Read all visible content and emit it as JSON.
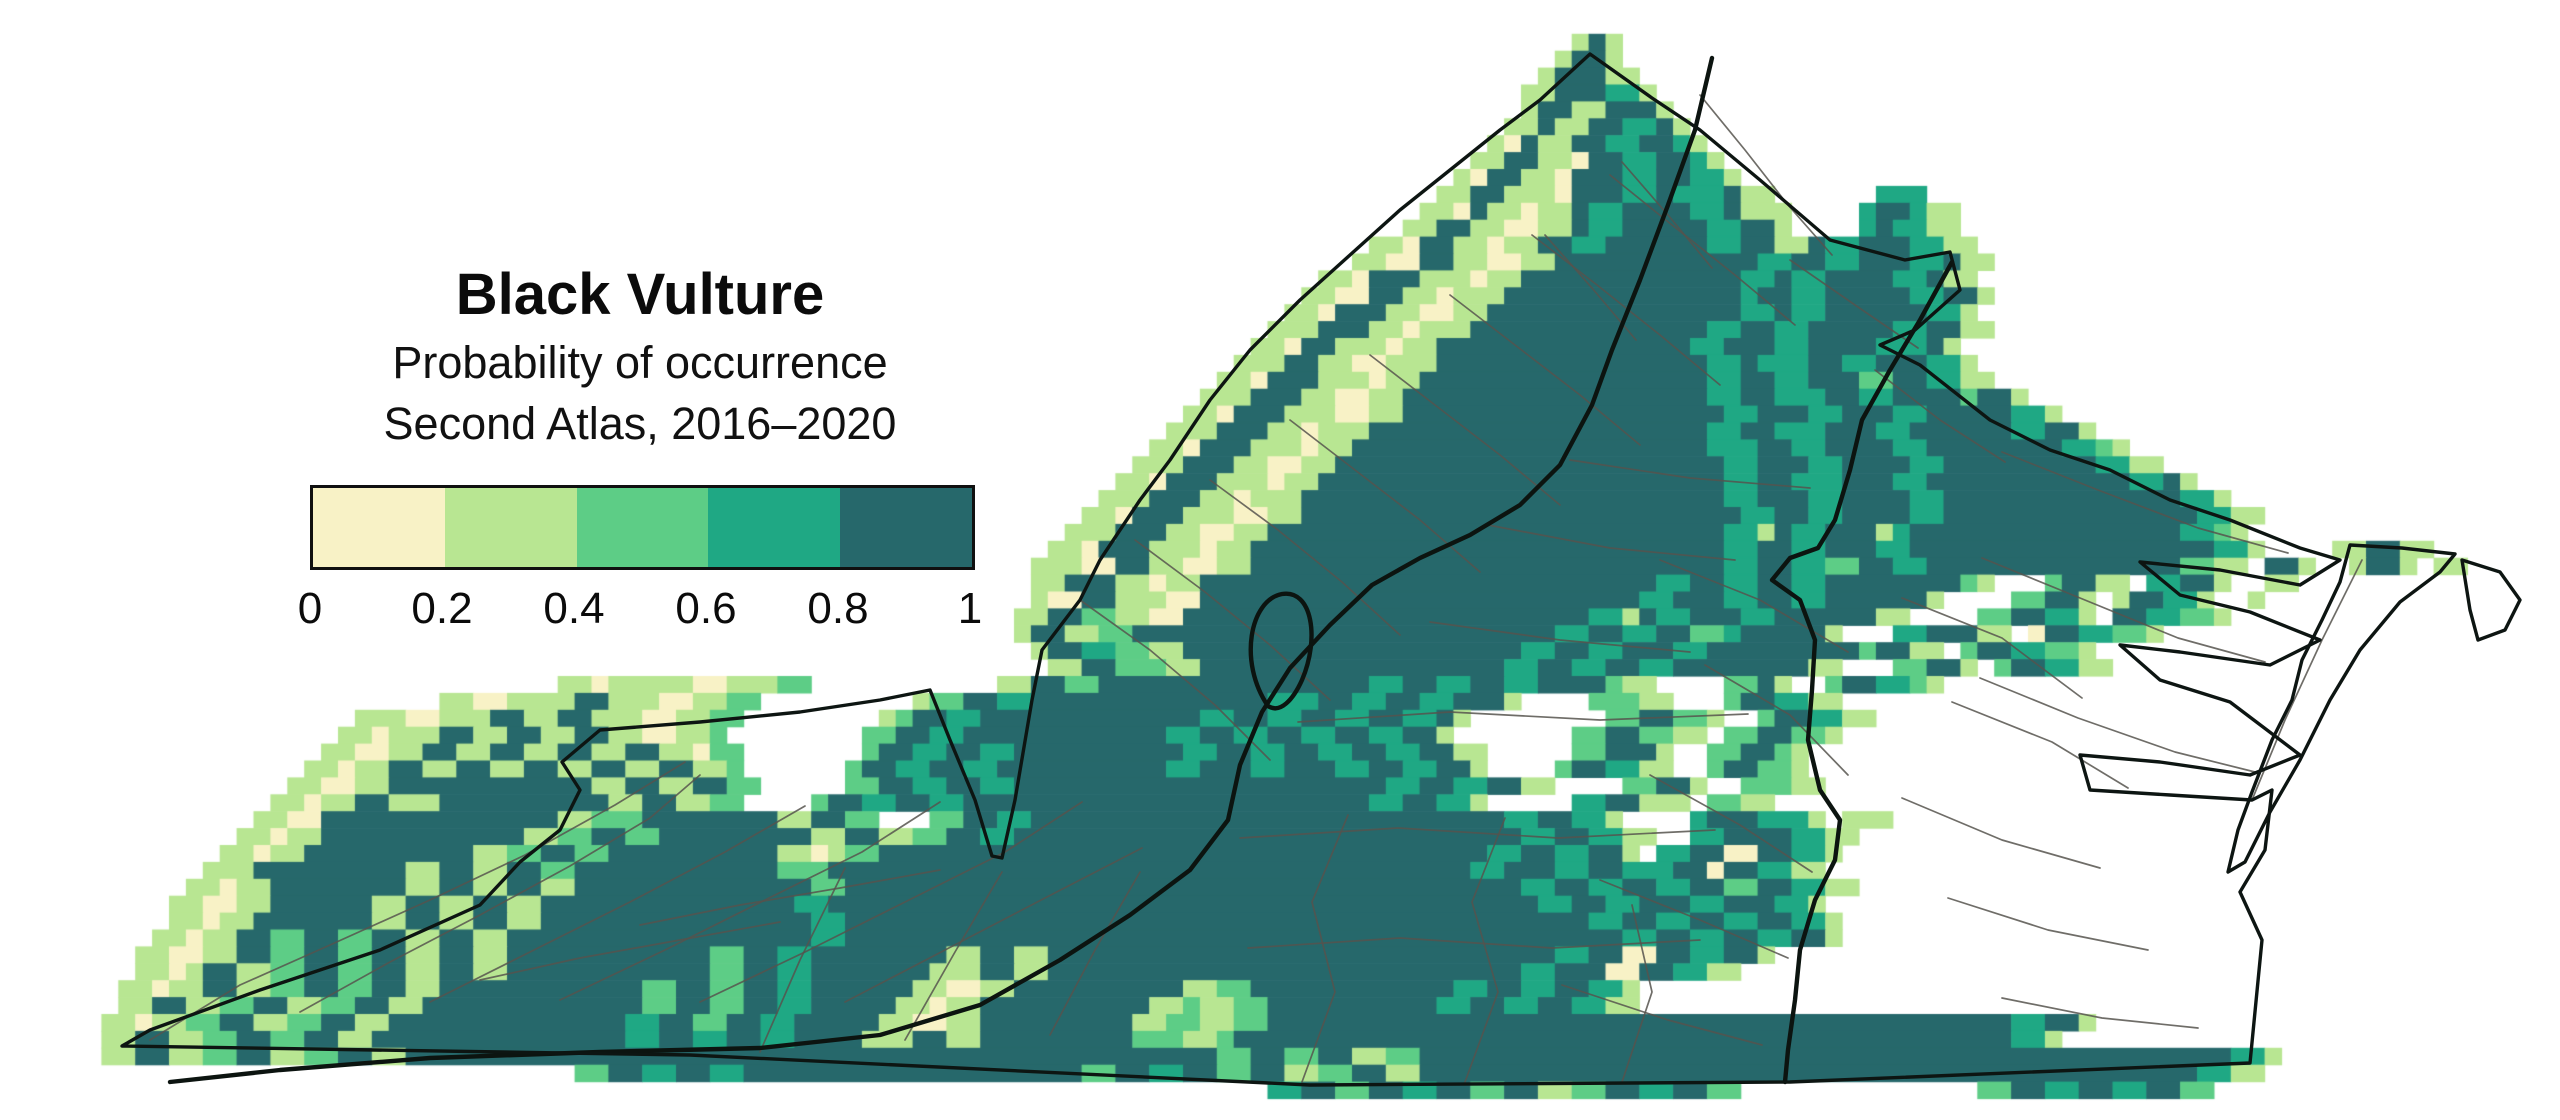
{
  "legend": {
    "heading": "Black Vulture",
    "subheading": "Probability of occurrence",
    "edition": "Second Atlas, 2016–2020",
    "ticks": [
      "0",
      "0.2",
      "0.4",
      "0.6",
      "0.8",
      "1"
    ],
    "classes": [
      {
        "range": "0–0.2",
        "color": "#F8F2C6"
      },
      {
        "range": "0.2–0.4",
        "color": "#B8E692"
      },
      {
        "range": "0.4–0.6",
        "color": "#5DCD86"
      },
      {
        "range": "0.6–0.8",
        "color": "#1FA884"
      },
      {
        "range": "0.8–1",
        "color": "#26686B"
      }
    ]
  },
  "map": {
    "background": "#ffffff",
    "county_line_color": "#56534e",
    "boundary_line_color": "#0d1512",
    "cell_size": 16.9,
    "palette": {
      "A": "#F8F2C6",
      "B": "#B8E692",
      "C": "#5DCD86",
      "D": "#1FA884",
      "E": "#26686B"
    },
    "rows": [
      "",
      "",
      "93.BEB",
      "92.B2EB",
      "91.B3E2B",
      "90.2B3E2DB",
      "90.B2E2B3EB",
      "89.2BE2B2E2DEB",
      "88.BAE2B2E2D2EDB",
      "87.2B2E2BA2E2D2EDB",
      "86.BA2E2BA3E2D2E2DB",
      "85.2B2E3BA3E2DE3DE2B6.3D",
      "84.2BAE2BA2BE2D4E2DE3B4.D2ED2B",
      "83.2B2E2B2A2BE2D5E2D2EB4.DE2D2B",
      "81.2BA2E2BA2B2E2D6E2D2E2BE2D3E2D2B",
      "80.2B2A2E2B2A2B12E2D2E2D3E2DE2B",
      "78.2BA3E3BA2B13E2DE2D4E2DE2B",
      "77.2B2A2E2BA3B14ED2E2D5E2D2EB",
      "76.2BA3E2B2A2B15E2DE2D6E2DB",
      "75.3B3E2BA3B14E2D2E2D5E2D2E2B",
      "74.2BA2E3BA2B15E2D3E2D4E3DEB",
      "73.3B2E2B2A3B16E2DE3D2E2D3E2DB",
      "72.2BA3E3BA2B17E2D2E2D3E2C2E2D2B",
      "71.3B3E2B2A2B18E2D2E3D2E2D4EC2EB",
      "70.2BA3E3B2A2B19E2D3E2D3E2D5E2DB",
      "69.3B3E2BA3B20E2D2E3D3E2D6E2D2EB",
      "68.2BA3E3BA2B21E3D2E2D4E2D8E2DCB",
      "67.3B3E2B2A2B23E2D3E2D4E2D9E2D2B",
      "66.2BA3E3BA2B24E2D2E3D3E2D12E2DEB",
      "65.3B3E2BA3B25E2D3E2D4E2D14E2DB",
      "64.2BA3E3B2A2B26E2D2E2D4E2D15E2D2B",
      "63.3B3E2B2A2B27E2DBE2D3EBD16E2DCB",
      "62.2BA3E3BA2B28E2D2E2D3E2D18E2DB4.2B2E2B",
      "61.3B2A2E2B2A2B28E2D2E2D2C2E2D15E2C2B.2EB2.B2EB.2B",
      "61.2B3E2BA2B27E2D2E2D2E2D8ECB3.C2E2B.2D2EB2.2B",
      "61.B2A2E3B2A26E2D3E2D2E2D6EB4.2C2EB.B2E2DB2.B",
      "60.2B2E2C2B2A24E2DBE2D3E2D6E2B4.2C2E2DB.2E2D2CB",
      "60.B2E2B2C25E2D2E2D2E2CD5EB3.2D3E2B.A2E2D2CB",
      "61.B2E2D2C2B20E2D2E2D3E2D9EC2E2B.C2E2D2CB",
      "62.2B2E3C2B18E2D2E2D2E2D8E2B3.2C2EB.C2E2D2B",
      "33.2BA5B2A3B2C11.2B2E2C16E2D2E2D2E2D4EC2B4.2CEB2.C2E2DCB",
      "26.2B2A4B2E3B2A2B2C9.B2C2E2D14E3D2E2D2E2D3EB4.3C2B3.C2E2D2B",
      "21.3B2A3B2E2B2E3B2A2B2C8.BC2E2D13E2D2E2D2E2D2E2DEB8.2C2E2CB2.C2E2D2B",
      "20.2BA3B2E2B2E2B2E2B2A2BC8.2C2E2D12E2D2E2D2E2D2E2D2EB7.2C2E2C2B.2C2E2CB",
      "19.2B2A2B2E2B2E2B2E2B2E2BA2C7.C2E2D2E2D10E2D2E2D2E2D2E2D2E2B5.2C3EB2.2C2ECB",
      "18.2BA2B2E2B2E2B2E2B2E2B2E2BC6.C2E2D2E2D10E2D3E2D3E2D2E2D2EB4.C2E2D2B2.C2E2CB",
      "17.2B2A2B12E2B2E2B2E2C5.2C2E2D2E2D22E2D2E2D2E2B4.2C2EB2.3C2B",
      "16.2BA2B2E3B10E2B2E2B2C4.C2E2D2E2D24E2D2E2DB5.2D2E3B.2C2B",
      "15.2B2A14E2B3C8E2B2E2C3.2C2E2D28E2D2E2DB4.D3E3DB.3B",
      "14.2BA2B12E2B2C2E2C9E2B2E2B2C2E2D30E2D2E2D2B2.2D4E2D2B",
      "13.2BA2B10E2B2C2E2C10E2BAB2C36E2D2E2D2EB.2D2E2A2E2DB",
      "12.3B9E2B2E2B2E2C12E3C38E2D3E2D2E3D2EA2E2D2B",
      "11.2BA2B8E2B2E2B2E2B14E2C40E2D2E2D2E2D2E2C2E2D2B",
      "10.2B2A2B6E2B2E2B2E2B15E2D42E2D2E2D3E2D3E2DB",
      "10.2BA2B7E2B2E2B2E2B16E2D44E2D2E2D2E2D2E2DB",
      "9.2BA2B2E2C2E2C2E2B2E2B18E2D46E2D2E2D2E2D2EB",
      "8.2B2A2B2E2C2E2C2E2B2E2B12E2C2E2D8E2B2E2B30E2D2E2A2E2D2EB",
      "8.2BAB2E2B2C2E2C2E2B2E2B12E2C2E2D7E3B2E2B28E2D3E2A2E2D2B",
      "7.2BA2B2E2B2C2E2C2E2B12E2C2E2C2E2D6E2B2A2B10E2B2C12E2D2E2D2E2DB",
      "7.2B2E2B2C2E2B2C2E2B13E2C2E2C2E2D5E2BA2B10E2BC2B2C10E2D2E2D2E2D2B",
      "6.2BA2B2C2E2B2C2E2B14E2D2E2C2E2D5E2B2A2B9E2B2C2B2C44E2D2EB",
      "6.2B2E2B2C2E2C2E2B15E2D2E2D2E2D4E3B2E2B9E3C2BC46E2DB",
      "6.2B2E2B2C2E2B2C2E2B48E2C2E2C2E2B2C48E2DB",
      "34.2C2E2D2E2D20E2C2E2D2E2C2E2B2C2E2B46E2D2B",
      "75.2D2E2C2E2D2E2C2E2B2C2E2D2E2C14.2C2E2D2E2D2E2C",
      ""
    ],
    "state_outline": [
      "M1590 54 L1652 98 L1700 130 L1760 180 L1830 240 L1905 260 L1950 252 L1960 290 L1915 330 L1880 345 L1920 365 L1990 420 L2050 450 L2110 470 L2170 500 L2230 520 L2300 548 L2340 560 L2300 585 L2220 570 L2140 562 L2180 595 L2250 612 L2320 640 L2270 665 L2180 652 L2120 645 L2160 680 L2230 702 L2300 755 L2250 775 L2160 762 L2080 755 L2090 790 L2170 795 L2252 800 L2272 790 L2265 850 L2240 892 L2262 940 L2250 1063 L1790 1082 L1310 1085 L690 1055 L122 1046 L150 1030 L260 990 L380 950 L480 905 L520 862 L560 830 L580 790 L562 762 L600 730 L700 722 L800 712 L880 700 L930 690 L950 740 L975 800 L992 856 L1002 858 L1015 800 L1032 700 L1042 650 L1080 600 L1100 560 L1140 500 L1170 460 L1210 400 L1250 350 L1300 300 L1350 255 L1400 210 L1450 170 L1500 130 L1540 100 Z",
      "M2350 545 L2402 548 L2455 554 L2440 572 L2400 602 L2360 650 L2330 700 L2300 760 L2270 812 L2245 862 L2228 872 L2238 830 L2252 792 L2272 740 L2292 700 L2302 660 L2322 620 L2340 582 Z",
      "M2462 560 L2500 572 L2520 600 L2505 630 L2478 640 L2470 610 Z"
    ],
    "region_boundaries": [
      "M1712 58 L1695 130 L1668 205 L1640 280 L1612 350 L1592 405 L1560 465 L1520 505 L1470 535 L1420 558 L1372 585 L1330 625 L1290 668 L1262 712 L1240 765 L1228 820 L1190 870 L1130 915 L1060 960 L980 1005 L880 1035 L760 1048 L600 1052 L430 1058 L280 1070 L170 1082",
      "M1268 706 C1238 662 1250 600 1282 594 C1312 589 1320 638 1302 680 C1293 700 1280 714 1268 706 Z",
      "M1952 262 L1920 320 L1890 370 L1862 420 L1850 470 L1835 520 L1818 548 L1790 558 L1772 580 L1800 600 L1815 640 L1812 690 L1808 740 L1820 790 L1840 820 L1835 860 L1815 900 L1800 950 L1795 1000 L1788 1050 L1785 1082"
    ],
    "county_boundaries": [
      "M150 1040 L240 985 L330 945 L430 900 L525 855 L615 805 L685 762",
      "M300 1012 L390 962 L480 915 L570 866 L650 818 L700 775",
      "M430 1002 L530 952 L630 902 L725 852 L805 806",
      "M560 1000 L665 950 L765 900 L862 852 L940 802",
      "M700 1002 L805 952 L905 902 L1005 852 L1082 802",
      "M845 1002 L945 950 L1045 898 L1142 848",
      "M760 1052 L800 960 L845 868",
      "M905 1040 L955 952 L1002 872",
      "M1050 1035 L1095 950 L1140 872",
      "M640 925 L740 905 L840 888 L940 870",
      "M480 980 L580 958 L680 940 L780 922",
      "M1080 600 L1150 650 L1215 705 L1270 760",
      "M1135 540 L1205 592 L1270 645 L1330 700",
      "M1210 480 L1278 530 L1342 582 L1400 635",
      "M1290 420 L1355 470 L1420 520 L1480 572",
      "M1370 355 L1435 405 L1500 455 L1560 505",
      "M1450 295 L1515 345 L1580 395 L1640 445",
      "M1532 235 L1597 285 L1660 335 L1720 385",
      "M1610 175 L1672 225 L1735 275 L1795 325",
      "M1302 1082 L1335 992 L1312 902 L1348 815",
      "M1465 1082 L1498 992 L1472 902 L1505 818",
      "M1622 1082 L1652 992 L1632 905",
      "M1248 948 L1400 938 L1552 948 L1700 940",
      "M1240 838 L1398 828 L1558 838 L1715 830",
      "M1298 722 L1450 712 L1600 720 L1748 714",
      "M1430 622 L1560 640 L1690 652",
      "M1488 525 L1610 548 L1735 560",
      "M1570 460 L1690 478 L1810 488",
      "M1660 560 L1760 600 L1848 652",
      "M1705 665 L1790 715 L1848 775",
      "M1650 775 L1740 825 L1812 872",
      "M1600 880 L1700 920 L1788 958",
      "M1562 985 L1668 1020 L1762 1045",
      "M1902 598 L2002 638 L2082 698",
      "M1952 702 L2052 742 L2128 788",
      "M1902 798 L2002 840 L2100 868",
      "M1948 898 L2048 930 L2148 950",
      "M2002 998 L2102 1018 L2198 1028",
      "M2002 452 L2098 490 L2198 528 L2288 553",
      "M1982 558 L2080 598 L2178 638 L2265 662",
      "M1980 678 L2078 718 L2175 752 L2255 772",
      "M1875 370 L1940 420 L2005 462",
      "M1790 260 L1855 305 L1918 348",
      "M1700 95 L1745 150 L1788 205 L1832 255",
      "M1622 162 L1668 215 L1712 268",
      "M1545 235 L1592 288 L1636 340",
      "M2362 560 L2322 640 L2285 720 L2252 800"
    ]
  }
}
